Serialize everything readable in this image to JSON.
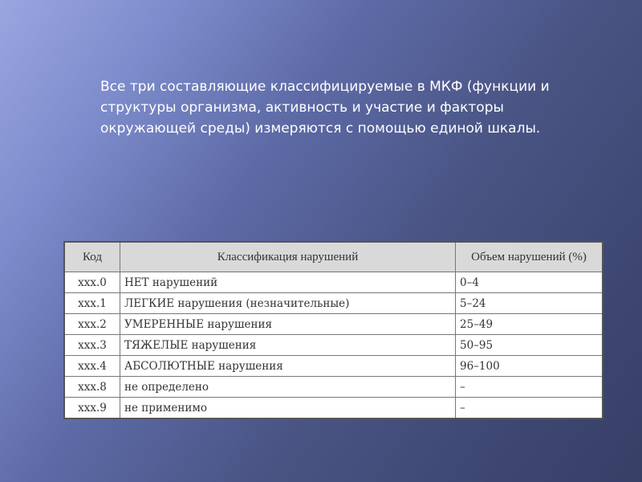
{
  "slide": {
    "text": "Все три составляющие классифицируемые в МКФ (функции и структуры организма, активность и участие и факторы окружающей среды) измеряются с помощью единой шкалы.",
    "table": {
      "headers": [
        "Код",
        "Классификация нарушений",
        "Объем нарушений (%)"
      ],
      "rows": [
        [
          "xxx.0",
          "НЕТ нарушений",
          "0–4"
        ],
        [
          "xxx.1",
          "ЛЕГКИЕ нарушения (незначительные)",
          "5–24"
        ],
        [
          "xxx.2",
          "УМЕРЕННЫЕ нарушения",
          "25–49"
        ],
        [
          "xxx.3",
          "ТЯЖЕЛЫЕ нарушения",
          "50–95"
        ],
        [
          "xxx.4",
          "АБСОЛЮТНЫЕ нарушения",
          "96–100"
        ],
        [
          "xxx.8",
          "не определено",
          "–"
        ],
        [
          "xxx.9",
          "не применимо",
          "–"
        ]
      ]
    }
  }
}
